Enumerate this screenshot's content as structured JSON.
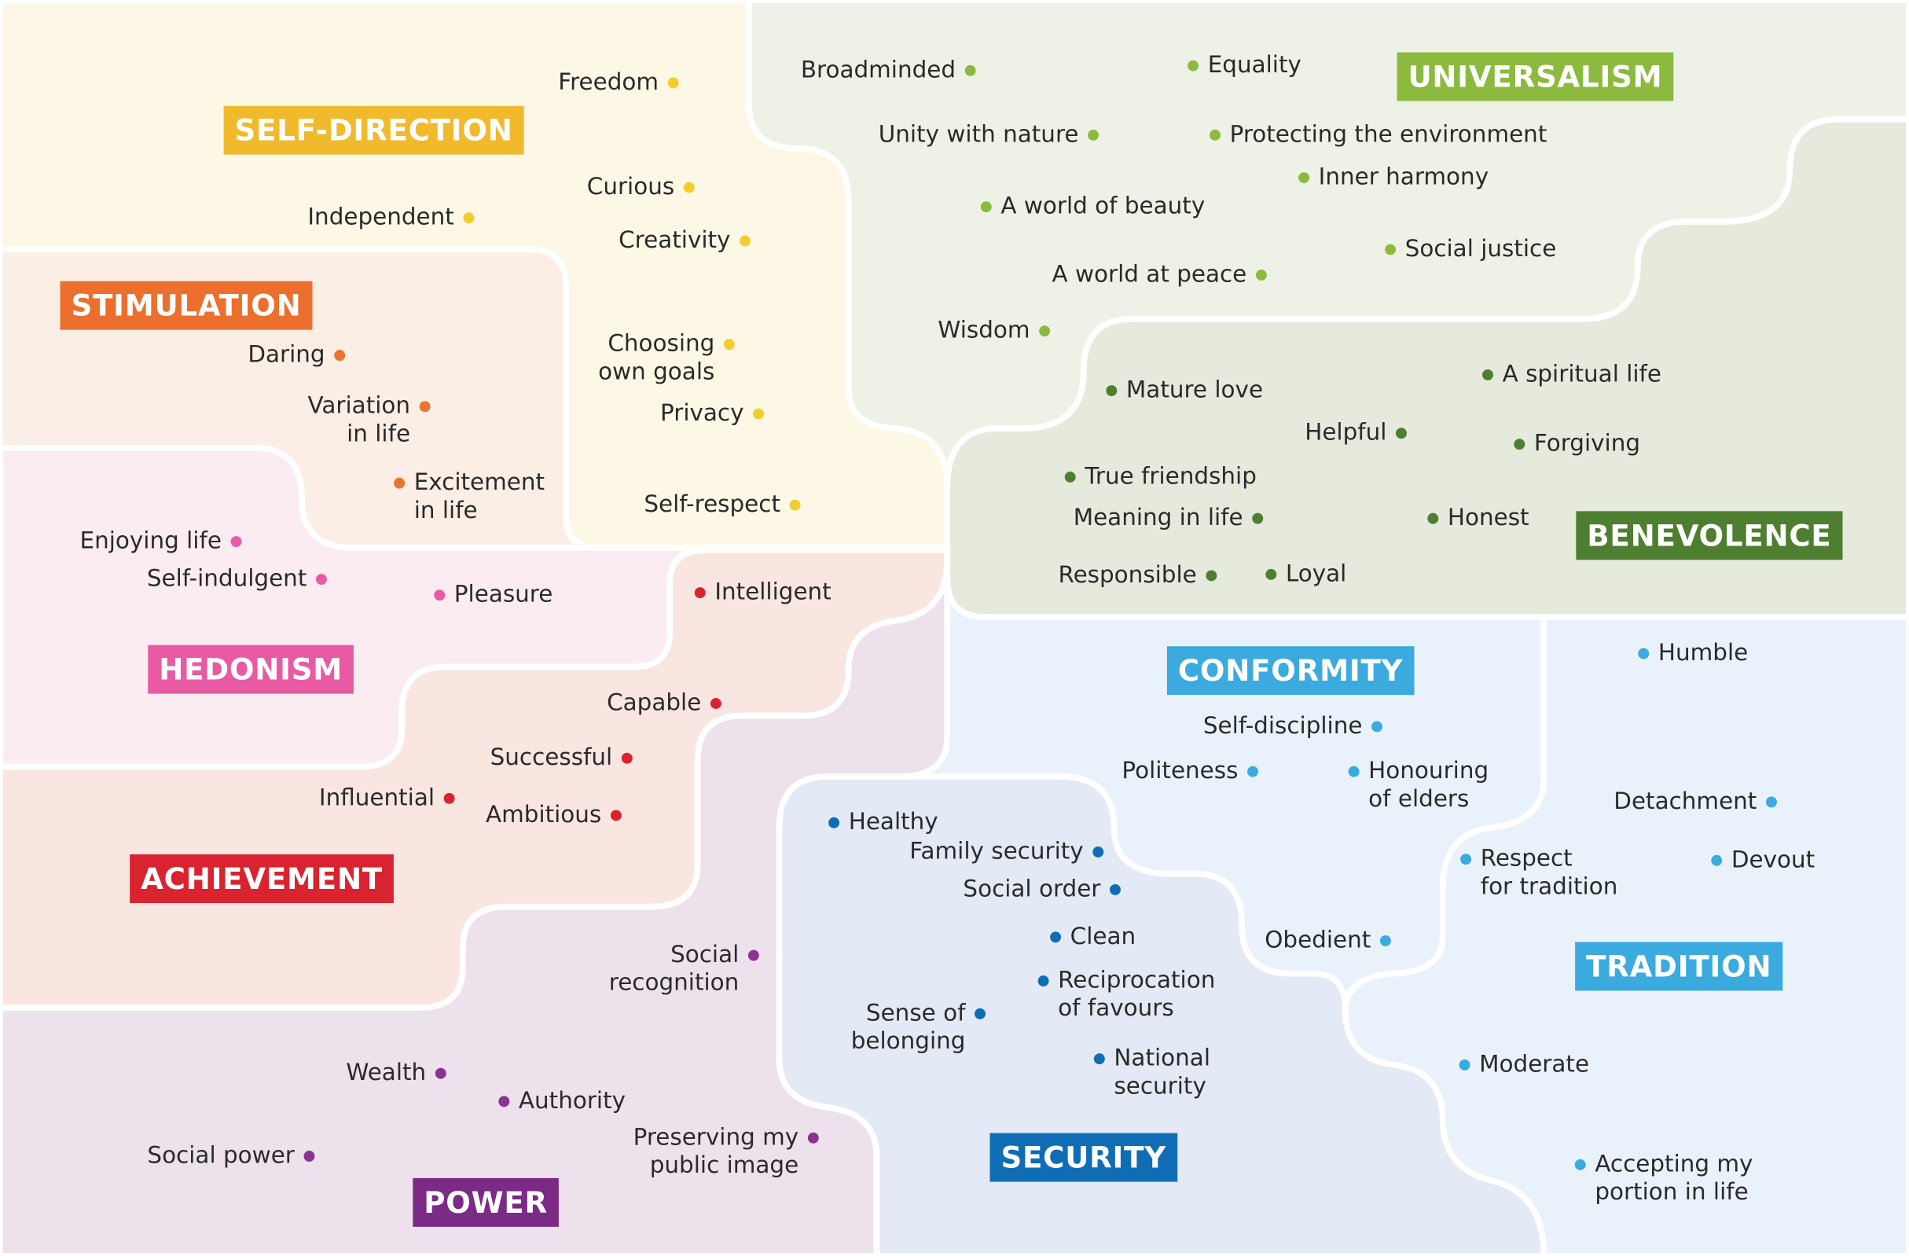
{
  "regions": [
    {
      "label": "SELF-DIRECTION",
      "items": [
        [
          "Freedom"
        ],
        [
          "Curious"
        ],
        [
          "Independent"
        ],
        [
          "Creativity"
        ],
        [
          "Choosing",
          "own goals"
        ],
        [
          "Privacy"
        ],
        [
          "Self-respect"
        ]
      ]
    },
    {
      "label": "STIMULATION",
      "items": [
        [
          "Daring"
        ],
        [
          "Variation",
          "in life"
        ],
        [
          "Excitement",
          "in life"
        ]
      ]
    },
    {
      "label": "HEDONISM",
      "items": [
        [
          "Enjoying life"
        ],
        [
          "Self-indulgent"
        ],
        [
          "Pleasure"
        ]
      ]
    },
    {
      "label": "ACHIEVEMENT",
      "items": [
        [
          "Intelligent"
        ],
        [
          "Capable"
        ],
        [
          "Successful"
        ],
        [
          "Influential"
        ],
        [
          "Ambitious"
        ]
      ]
    },
    {
      "label": "POWER",
      "items": [
        [
          "Social",
          "recognition"
        ],
        [
          "Wealth"
        ],
        [
          "Authority"
        ],
        [
          "Social power"
        ],
        [
          "Preserving my",
          "public image"
        ]
      ]
    },
    {
      "label": "UNIVERSALISM",
      "items": [
        [
          "Broadminded"
        ],
        [
          "Equality"
        ],
        [
          "Unity with nature"
        ],
        [
          "Protecting the environment"
        ],
        [
          "Inner harmony"
        ],
        [
          "A world of beauty"
        ],
        [
          "Social justice"
        ],
        [
          "A world at peace"
        ],
        [
          "Wisdom"
        ]
      ]
    },
    {
      "label": "BENEVOLENCE",
      "items": [
        [
          "A spiritual life"
        ],
        [
          "Mature love"
        ],
        [
          "Helpful"
        ],
        [
          "Forgiving"
        ],
        [
          "True friendship"
        ],
        [
          "Meaning in life"
        ],
        [
          "Honest"
        ],
        [
          "Responsible"
        ],
        [
          "Loyal"
        ]
      ]
    },
    {
      "label": "CONFORMITY",
      "items": [
        [
          "Self-discipline"
        ],
        [
          "Politeness"
        ],
        [
          "Honouring",
          "of elders"
        ],
        [
          "Obedient"
        ]
      ]
    },
    {
      "label": "TRADITION",
      "items": [
        [
          "Humble"
        ],
        [
          "Detachment"
        ],
        [
          "Respect",
          "for tradition"
        ],
        [
          "Devout"
        ],
        [
          "Moderate"
        ],
        [
          "Accepting my",
          "portion in life"
        ]
      ]
    },
    {
      "label": "SECURITY",
      "items": [
        [
          "Healthy"
        ],
        [
          "Family security"
        ],
        [
          "Social order"
        ],
        [
          "Clean"
        ],
        [
          "Reciprocation",
          "of favours"
        ],
        [
          "Sense of",
          "belonging"
        ],
        [
          "National",
          "security"
        ]
      ]
    }
  ]
}
